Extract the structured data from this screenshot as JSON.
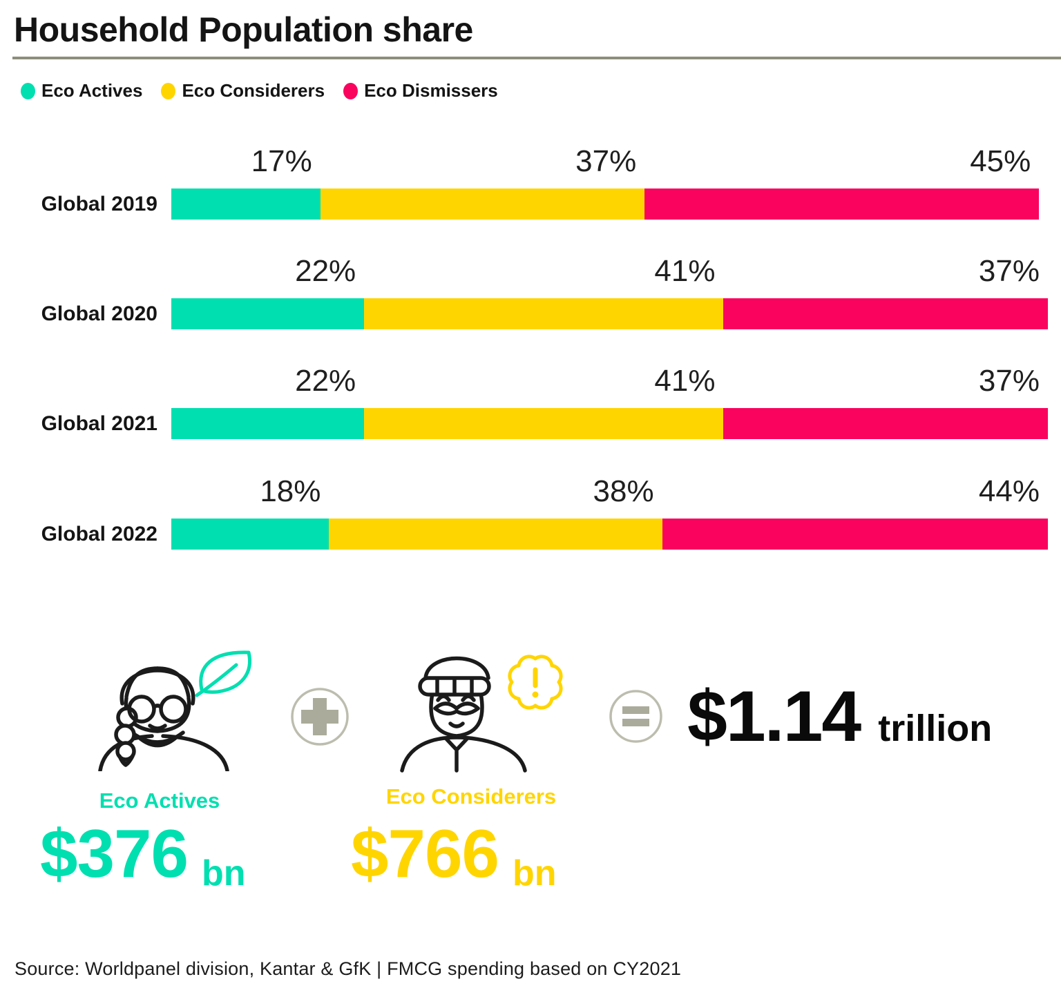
{
  "title": "Household Population share",
  "legend": {
    "items": [
      {
        "label": "Eco Actives",
        "color": "#00DFB0"
      },
      {
        "label": "Eco Considerers",
        "color": "#FFD500"
      },
      {
        "label": "Eco Dismissers",
        "color": "#F9035F"
      }
    ]
  },
  "chart_data": {
    "type": "bar",
    "orientation": "horizontal",
    "stacked": true,
    "categories": [
      "Global 2019",
      "Global 2020",
      "Global 2021",
      "Global 2022"
    ],
    "series": [
      {
        "name": "Eco Actives",
        "color": "#00DFB0",
        "values": [
          17,
          22,
          22,
          18
        ]
      },
      {
        "name": "Eco Considerers",
        "color": "#FFD500",
        "values": [
          37,
          41,
          41,
          38
        ]
      },
      {
        "name": "Eco Dismissers",
        "color": "#F9035F",
        "values": [
          45,
          37,
          37,
          44
        ]
      }
    ],
    "value_suffix": "%",
    "xlim": [
      0,
      100
    ],
    "grid": false,
    "legend_position": "top",
    "title": "Household Population share"
  },
  "infographic": {
    "eco_actives": {
      "label": "Eco Actives",
      "value": "$376",
      "unit": "bn",
      "color": "#00DFB0",
      "icon": "woman-leaf-icon"
    },
    "plus_icon": "plus-circle-icon",
    "eco_considerers": {
      "label": "Eco Considerers",
      "value": "$766",
      "unit": "bn",
      "color": "#FFD500",
      "icon": "man-exclamation-icon"
    },
    "equals_icon": "equals-circle-icon",
    "total": {
      "value": "$1.14",
      "unit": "trillion"
    }
  },
  "source": "Source: Worldpanel division, Kantar & GfK | FMCG spending based on CY2021",
  "colors": {
    "teal": "#00DFB0",
    "yellow": "#FFD500",
    "pink": "#F9035F",
    "icon_gray": "#ABAB9B",
    "icon_ring": "#BDBDAF",
    "divider": "#8E8E7D",
    "text": "#141414"
  }
}
